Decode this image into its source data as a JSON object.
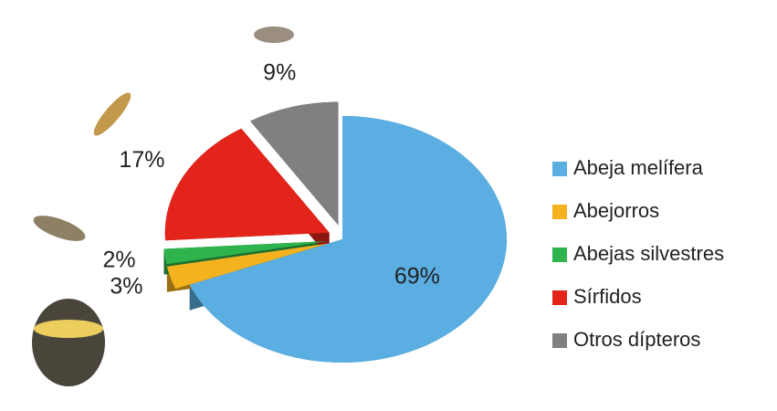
{
  "chart_data": {
    "type": "pie",
    "categories": [
      "Abeja melífera",
      "Abejorros",
      "Abejas silvestres",
      "Sírfidos",
      "Otros dípteros"
    ],
    "values": [
      69,
      3,
      2,
      17,
      9
    ],
    "value_labels": [
      "69%",
      "3%",
      "2%",
      "17%",
      "9%"
    ],
    "colors": [
      "#5aaee2",
      "#f5b21f",
      "#2fb34c",
      "#e2241b",
      "#808080"
    ],
    "legend": "right"
  }
}
